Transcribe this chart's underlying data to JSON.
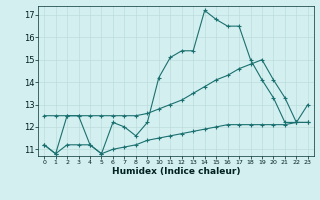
{
  "xlabel": "Humidex (Indice chaleur)",
  "x": [
    0,
    1,
    2,
    3,
    4,
    5,
    6,
    7,
    8,
    9,
    10,
    11,
    12,
    13,
    14,
    15,
    16,
    17,
    18,
    19,
    20,
    21,
    22,
    23
  ],
  "line_top": [
    11.2,
    10.8,
    12.5,
    12.5,
    11.2,
    10.8,
    12.2,
    12.0,
    11.6,
    12.2,
    14.2,
    15.1,
    15.4,
    15.4,
    17.2,
    16.8,
    16.5,
    16.5,
    15.0,
    14.1,
    13.3,
    12.2,
    12.2,
    13.0
  ],
  "line_mid": [
    12.5,
    12.5,
    12.5,
    12.5,
    12.5,
    12.5,
    12.5,
    12.5,
    12.5,
    12.6,
    12.8,
    13.0,
    13.2,
    13.5,
    13.8,
    14.1,
    14.3,
    14.6,
    14.8,
    15.0,
    14.1,
    13.3,
    12.2,
    12.2
  ],
  "line_bot": [
    11.2,
    10.8,
    11.2,
    11.2,
    11.2,
    10.8,
    11.0,
    11.1,
    11.2,
    11.4,
    11.5,
    11.6,
    11.7,
    11.8,
    11.9,
    12.0,
    12.1,
    12.1,
    12.1,
    12.1,
    12.1,
    12.1,
    12.2,
    12.2
  ],
  "color": "#1a7070",
  "bg_color": "#d4efef",
  "grid_color": "#b8d8d8",
  "ylim": [
    10.7,
    17.4
  ],
  "yticks": [
    11,
    12,
    13,
    14,
    15,
    16,
    17
  ],
  "xticks": [
    0,
    1,
    2,
    3,
    4,
    5,
    6,
    7,
    8,
    9,
    10,
    11,
    12,
    13,
    14,
    15,
    16,
    17,
    18,
    19,
    20,
    21,
    22,
    23
  ],
  "xlim": [
    -0.5,
    23.5
  ]
}
